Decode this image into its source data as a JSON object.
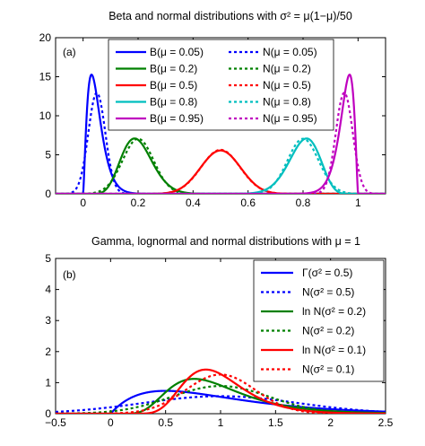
{
  "chart_data": [
    {
      "type": "line",
      "title": "Beta and normal distributions with σ² = μ(1−μ)/50",
      "panel_label": "(a)",
      "xlim": [
        -0.1,
        1.1
      ],
      "ylim": [
        0,
        20
      ],
      "xticks": [
        0,
        0.2,
        0.4,
        0.6,
        0.8,
        1
      ],
      "xtick_labels": [
        "0",
        "0.2",
        "0.4",
        "0.6",
        "0.8",
        "1"
      ],
      "yticks": [
        0,
        5,
        10,
        15,
        20
      ],
      "ytick_labels": [
        "0",
        "5",
        "10",
        "15",
        "20"
      ],
      "legend_position": "top",
      "series": [
        {
          "name": "B(μ = 0.05)",
          "color": "#0000ff",
          "dash": false,
          "dist": "beta",
          "mu": 0.05
        },
        {
          "name": "N(μ = 0.05)",
          "color": "#0000ff",
          "dash": true,
          "dist": "normal",
          "mu": 0.05
        },
        {
          "name": "B(μ = 0.2)",
          "color": "#008000",
          "dash": false,
          "dist": "beta",
          "mu": 0.2
        },
        {
          "name": "N(μ = 0.2)",
          "color": "#008000",
          "dash": true,
          "dist": "normal",
          "mu": 0.2
        },
        {
          "name": "B(μ = 0.5)",
          "color": "#ff0000",
          "dash": false,
          "dist": "beta",
          "mu": 0.5
        },
        {
          "name": "N(μ = 0.5)",
          "color": "#ff0000",
          "dash": true,
          "dist": "normal",
          "mu": 0.5
        },
        {
          "name": "B(μ = 0.8)",
          "color": "#00bfbf",
          "dash": false,
          "dist": "beta",
          "mu": 0.8
        },
        {
          "name": "N(μ = 0.8)",
          "color": "#00bfbf",
          "dash": true,
          "dist": "normal",
          "mu": 0.8
        },
        {
          "name": "B(μ = 0.95)",
          "color": "#bf00bf",
          "dash": false,
          "dist": "beta",
          "mu": 0.95
        },
        {
          "name": "N(μ = 0.95)",
          "color": "#bf00bf",
          "dash": true,
          "dist": "normal",
          "mu": 0.95
        }
      ]
    },
    {
      "type": "line",
      "title": "Gamma, lognormal and normal distributions with μ = 1",
      "panel_label": "(b)",
      "xlim": [
        -0.5,
        2.5
      ],
      "ylim": [
        0,
        5
      ],
      "xticks": [
        -0.5,
        0,
        0.5,
        1,
        1.5,
        2,
        2.5
      ],
      "xtick_labels": [
        "−0.5",
        "0",
        "0.5",
        "1",
        "1.5",
        "2",
        "2.5"
      ],
      "yticks": [
        0,
        1,
        2,
        3,
        4,
        5
      ],
      "ytick_labels": [
        "0",
        "1",
        "2",
        "3",
        "4",
        "5"
      ],
      "legend_position": "top-right",
      "series": [
        {
          "name": "Γ(σ² = 0.5)",
          "color": "#0000ff",
          "dash": false,
          "dist": "gamma",
          "var": 0.5
        },
        {
          "name": "N(σ² = 0.5)",
          "color": "#0000ff",
          "dash": true,
          "dist": "normal",
          "var": 0.5
        },
        {
          "name": "ln N(σ² = 0.2)",
          "color": "#008000",
          "dash": false,
          "dist": "lognormal",
          "var": 0.2
        },
        {
          "name": "N(σ² = 0.2)",
          "color": "#008000",
          "dash": true,
          "dist": "normal",
          "var": 0.2
        },
        {
          "name": "ln N(σ² = 0.1)",
          "color": "#ff0000",
          "dash": false,
          "dist": "lognormal",
          "var": 0.1
        },
        {
          "name": "N(σ² = 0.1)",
          "color": "#ff0000",
          "dash": true,
          "dist": "normal",
          "var": 0.1
        }
      ]
    }
  ]
}
